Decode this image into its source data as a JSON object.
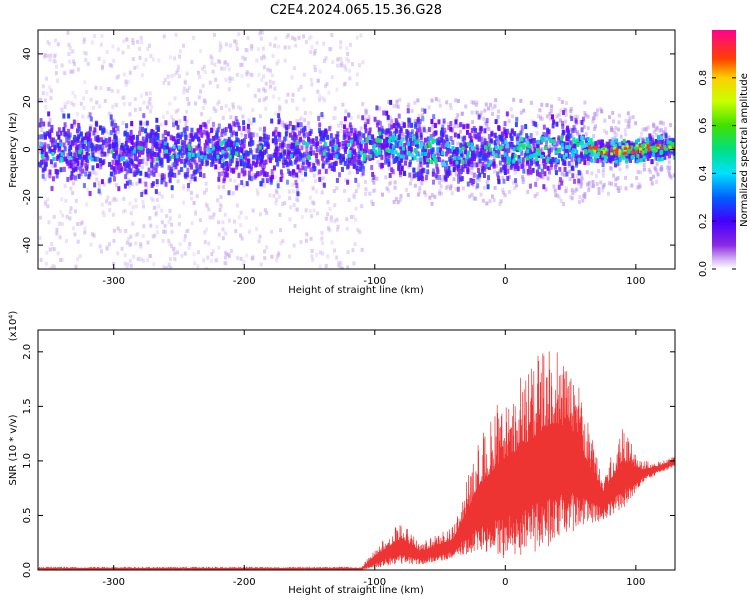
{
  "title": "C2E4.2024.065.15.36.G28",
  "chart_data": [
    {
      "type": "heatmap",
      "xlabel": "Height of straight line (km)",
      "ylabel": "Frequency (Hz)",
      "xlim": [
        -358,
        130
      ],
      "ylim": [
        -50,
        50
      ],
      "xticks": [
        -300,
        -200,
        -100,
        0,
        100
      ],
      "xtick_labels": [
        "-300",
        "-200",
        "-100",
        "0",
        "100"
      ],
      "yticks": [
        -40,
        -20,
        0,
        20,
        40
      ],
      "ytick_labels": [
        "-40",
        "-20",
        "0",
        "20",
        "40"
      ],
      "colorbar": {
        "label": "Normalized spectral amplitude",
        "range": [
          0,
          1
        ],
        "ticks": [
          0.0,
          0.2,
          0.4,
          0.6,
          0.8
        ],
        "tick_labels": [
          "0.0",
          "0.2",
          "0.4",
          "0.6",
          "0.8"
        ],
        "colormap": "rainbow (purple to magenta)"
      },
      "band_center_hz": [
        {
          "x": -350,
          "y": 0
        },
        {
          "x": -200,
          "y": 0
        },
        {
          "x": -110,
          "y": 1
        },
        {
          "x": -95,
          "y": 5
        },
        {
          "x": -80,
          "y": 2
        },
        {
          "x": -50,
          "y": 0
        },
        {
          "x": -40,
          "y": -2
        },
        {
          "x": 0,
          "y": 0
        },
        {
          "x": 50,
          "y": 1
        },
        {
          "x": 80,
          "y": 0
        },
        {
          "x": 130,
          "y": 2
        }
      ],
      "scatter_spread_hz": [
        {
          "x_range": [
            -358,
            -110
          ],
          "spread": 50
        },
        {
          "x_range": [
            -110,
            130
          ],
          "spread": 22
        }
      ]
    },
    {
      "type": "line",
      "xlabel": "Height of straight line (km)",
      "ylabel": "SNR (10 * v/v)",
      "scale_label": "(x10⁴)",
      "xlim": [
        -358,
        130
      ],
      "ylim": [
        0,
        2.2
      ],
      "xticks": [
        -300,
        -200,
        -100,
        0,
        100
      ],
      "xtick_labels": [
        "-300",
        "-200",
        "-100",
        "0",
        "100"
      ],
      "yticks": [
        0.0,
        0.5,
        1.0,
        1.5,
        2.0
      ],
      "ytick_labels": [
        "0.0",
        "0.5",
        "1.0",
        "1.5",
        "2.0"
      ],
      "color": "#ee3333",
      "envelope": [
        {
          "x": -358,
          "low": 0.0,
          "high": 0.03
        },
        {
          "x": -110,
          "low": 0.0,
          "high": 0.03
        },
        {
          "x": -100,
          "low": 0.02,
          "high": 0.2
        },
        {
          "x": -80,
          "low": 0.05,
          "high": 0.45
        },
        {
          "x": -65,
          "low": 0.05,
          "high": 0.25
        },
        {
          "x": -40,
          "low": 0.1,
          "high": 0.4
        },
        {
          "x": -20,
          "low": 0.15,
          "high": 1.2
        },
        {
          "x": -5,
          "low": 0.1,
          "high": 1.55
        },
        {
          "x": 20,
          "low": 0.15,
          "high": 1.9
        },
        {
          "x": 35,
          "low": 0.2,
          "high": 2.1
        },
        {
          "x": 50,
          "low": 0.3,
          "high": 2.0
        },
        {
          "x": 60,
          "low": 0.4,
          "high": 1.5
        },
        {
          "x": 75,
          "low": 0.45,
          "high": 0.9
        },
        {
          "x": 90,
          "low": 0.55,
          "high": 1.3
        },
        {
          "x": 105,
          "low": 0.8,
          "high": 1.0
        },
        {
          "x": 120,
          "low": 0.9,
          "high": 1.0
        },
        {
          "x": 130,
          "low": 0.95,
          "high": 1.05
        }
      ]
    }
  ]
}
